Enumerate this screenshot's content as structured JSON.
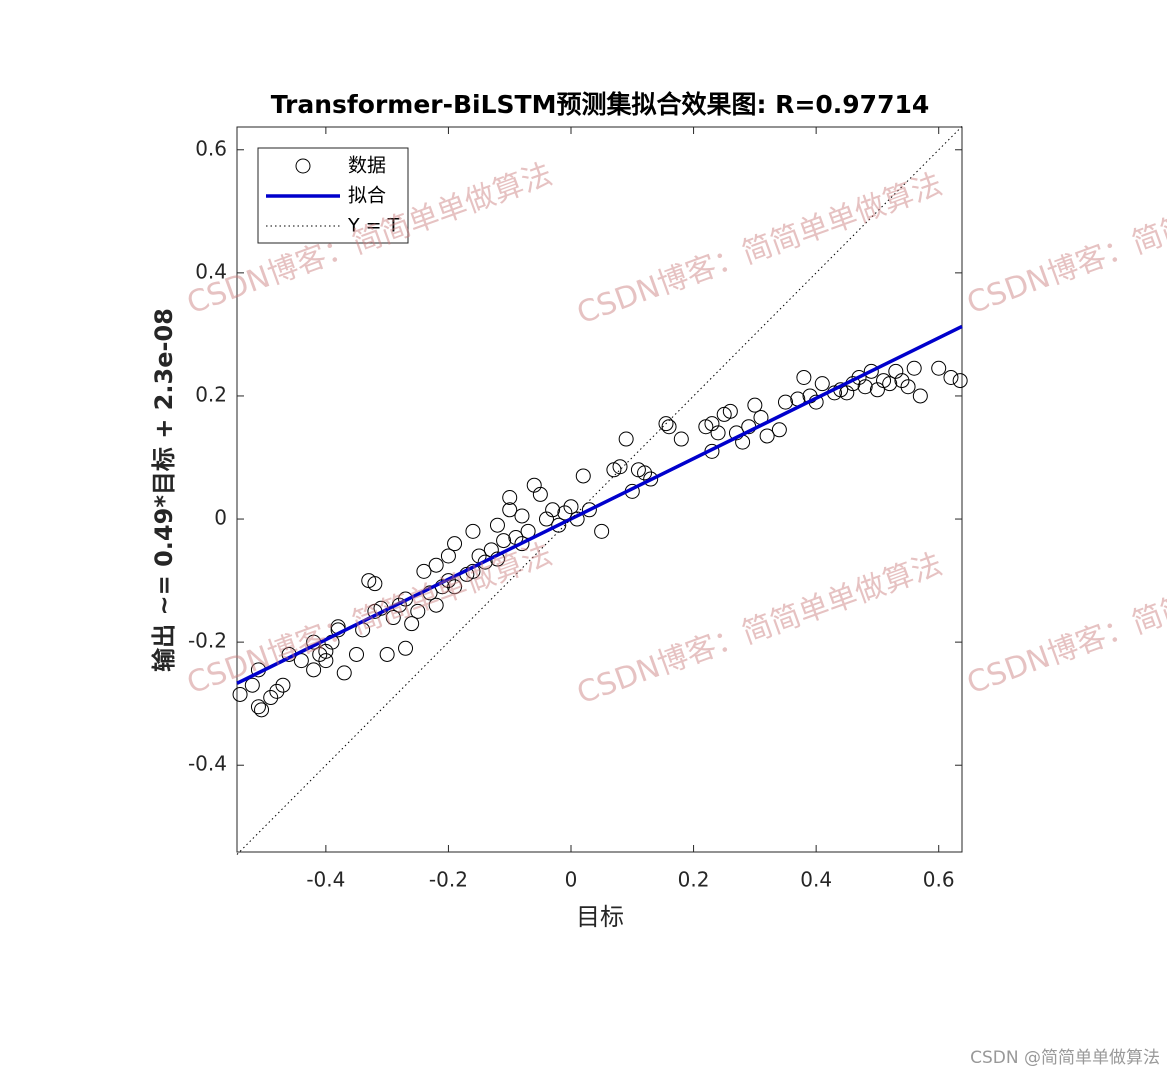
{
  "chart_data": {
    "type": "scatter",
    "title": "Transformer-BiLSTM预测集拟合效果图: R=0.97714",
    "x_label": "目标",
    "y_label": "输出 ~= 0.49*目标 + 2.3e-08",
    "xlim": [
      -0.545,
      0.638
    ],
    "ylim": [
      -0.541,
      0.637
    ],
    "xticks": [
      -0.4,
      -0.2,
      0,
      0.2,
      0.4,
      0.6
    ],
    "yticks": [
      -0.4,
      -0.2,
      0,
      0.2,
      0.4,
      0.6
    ],
    "legend": "upper left",
    "watermark": "CSDN博客：简简单单做算法",
    "footer": "CSDN @简简单单做算法",
    "series": [
      {
        "name": "数据",
        "color": "#000000",
        "kind": "marker",
        "x": [
          -0.54,
          -0.52,
          -0.51,
          -0.505,
          -0.51,
          -0.49,
          -0.48,
          -0.47,
          -0.46,
          -0.44,
          -0.42,
          -0.42,
          -0.41,
          -0.4,
          -0.4,
          -0.39,
          -0.38,
          -0.38,
          -0.37,
          -0.35,
          -0.34,
          -0.33,
          -0.32,
          -0.32,
          -0.31,
          -0.3,
          -0.29,
          -0.28,
          -0.27,
          -0.27,
          -0.26,
          -0.25,
          -0.24,
          -0.23,
          -0.22,
          -0.22,
          -0.21,
          -0.2,
          -0.2,
          -0.19,
          -0.19,
          -0.17,
          -0.16,
          -0.16,
          -0.15,
          -0.14,
          -0.13,
          -0.12,
          -0.12,
          -0.11,
          -0.1,
          -0.1,
          -0.09,
          -0.08,
          -0.08,
          -0.07,
          -0.06,
          -0.05,
          -0.04,
          -0.03,
          -0.02,
          -0.01,
          0.0,
          0.01,
          0.02,
          0.03,
          0.05,
          0.07,
          0.08,
          0.09,
          0.1,
          0.11,
          0.12,
          0.13,
          0.155,
          0.16,
          0.18,
          0.22,
          0.23,
          0.23,
          0.24,
          0.25,
          0.26,
          0.27,
          0.28,
          0.29,
          0.3,
          0.31,
          0.32,
          0.34,
          0.35,
          0.37,
          0.38,
          0.39,
          0.4,
          0.41,
          0.43,
          0.44,
          0.45,
          0.46,
          0.47,
          0.48,
          0.49,
          0.5,
          0.51,
          0.52,
          0.53,
          0.54,
          0.55,
          0.56,
          0.57,
          0.6,
          0.62,
          0.635
        ],
        "values": [
          -0.285,
          -0.27,
          -0.305,
          -0.31,
          -0.245,
          -0.29,
          -0.28,
          -0.27,
          -0.22,
          -0.23,
          -0.2,
          -0.245,
          -0.22,
          -0.23,
          -0.215,
          -0.2,
          -0.18,
          -0.175,
          -0.25,
          -0.22,
          -0.18,
          -0.1,
          -0.105,
          -0.15,
          -0.145,
          -0.22,
          -0.16,
          -0.14,
          -0.13,
          -0.21,
          -0.17,
          -0.15,
          -0.085,
          -0.12,
          -0.14,
          -0.075,
          -0.11,
          -0.06,
          -0.1,
          -0.04,
          -0.11,
          -0.09,
          -0.085,
          -0.02,
          -0.06,
          -0.07,
          -0.05,
          -0.01,
          -0.065,
          -0.035,
          0.035,
          0.015,
          -0.03,
          0.005,
          -0.04,
          -0.02,
          0.055,
          0.04,
          0.0,
          0.015,
          -0.01,
          0.01,
          0.02,
          0.0,
          0.07,
          0.015,
          -0.02,
          0.08,
          0.085,
          0.13,
          0.045,
          0.08,
          0.075,
          0.065,
          0.155,
          0.15,
          0.13,
          0.15,
          0.11,
          0.155,
          0.14,
          0.17,
          0.175,
          0.14,
          0.125,
          0.15,
          0.185,
          0.165,
          0.135,
          0.145,
          0.19,
          0.195,
          0.23,
          0.2,
          0.19,
          0.22,
          0.205,
          0.21,
          0.205,
          0.22,
          0.23,
          0.215,
          0.24,
          0.21,
          0.225,
          0.22,
          0.24,
          0.225,
          0.215,
          0.245,
          0.2,
          0.245,
          0.23,
          0.225
        ]
      },
      {
        "name": "拟合",
        "color": "#0000cc",
        "kind": "solid",
        "x": [
          -0.545,
          0.638
        ],
        "values": [
          -0.267,
          0.313
        ]
      },
      {
        "name": "Y = T",
        "color": "#000000",
        "kind": "dotted",
        "x": [
          -0.545,
          0.638
        ],
        "values": [
          -0.545,
          0.638
        ]
      }
    ]
  }
}
